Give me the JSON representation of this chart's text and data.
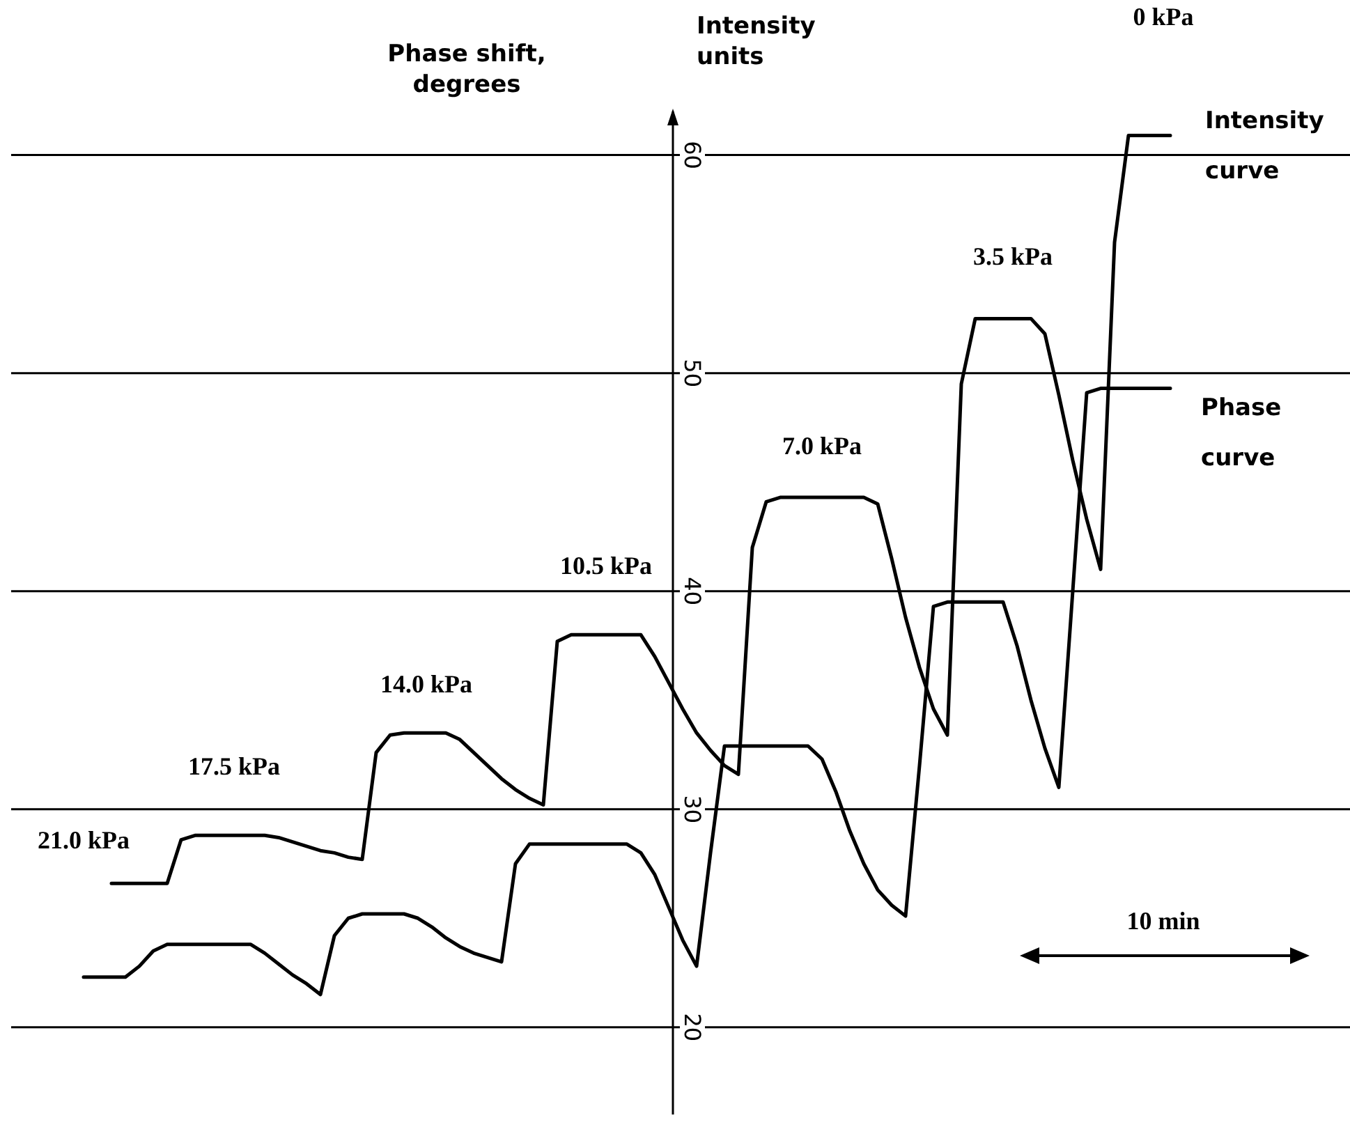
{
  "chart_data": {
    "type": "line",
    "ylabel": "Intensity units",
    "categories": [
      null,
      null,
      null,
      null,
      null,
      null,
      null,
      null,
      null,
      null,
      null,
      null,
      null,
      null,
      null,
      null,
      null,
      null,
      null,
      null,
      null,
      null,
      null,
      null,
      null,
      null,
      null,
      null,
      null,
      null,
      null,
      null,
      null,
      null,
      null,
      null,
      null,
      null,
      null,
      null,
      null,
      null,
      null,
      null,
      null,
      null,
      null,
      null,
      null,
      null,
      null,
      null,
      null,
      null,
      null,
      null,
      null,
      null,
      null,
      null,
      null,
      null,
      null,
      null,
      null,
      null,
      null,
      null,
      null,
      null,
      null,
      null,
      null,
      null,
      null,
      null,
      null,
      null,
      null,
      null
    ],
    "series": [
      {
        "name": "Intensity curve",
        "color": "#000000",
        "values": [
          null,
          null,
          null,
          26.6,
          26.6,
          26.6,
          26.6,
          26.6,
          28.6,
          28.8,
          28.8,
          28.8,
          28.8,
          28.8,
          28.8,
          28.7,
          28.5,
          28.3,
          28.1,
          28.0,
          27.8,
          27.7,
          32.6,
          33.4,
          33.5,
          33.5,
          33.5,
          33.5,
          33.2,
          32.6,
          32.0,
          31.4,
          30.9,
          30.5,
          30.2,
          37.7,
          38.0,
          38.0,
          38.0,
          38.0,
          38.0,
          38.0,
          37.0,
          35.8,
          34.6,
          33.5,
          32.7,
          32.0,
          31.6,
          42.0,
          44.1,
          44.3,
          44.3,
          44.3,
          44.3,
          44.3,
          44.3,
          44.3,
          44.0,
          41.5,
          38.8,
          36.5,
          34.6,
          33.4,
          49.5,
          52.5,
          52.5,
          52.5,
          52.5,
          52.5,
          51.8,
          49.0,
          46.0,
          43.3,
          41.0,
          56.0,
          60.9,
          60.9,
          60.9,
          60.9
        ]
      },
      {
        "name": "Phase curve",
        "color": "#000000",
        "values": [
          null,
          22.3,
          22.3,
          22.3,
          22.3,
          22.8,
          23.5,
          23.8,
          23.8,
          23.8,
          23.8,
          23.8,
          23.8,
          23.8,
          23.4,
          22.9,
          22.4,
          22.0,
          21.5,
          24.2,
          25.0,
          25.2,
          25.2,
          25.2,
          25.2,
          25.0,
          24.6,
          24.1,
          23.7,
          23.4,
          23.2,
          23.0,
          27.5,
          28.4,
          28.4,
          28.4,
          28.4,
          28.4,
          28.4,
          28.4,
          28.4,
          28.0,
          27.0,
          25.5,
          24.0,
          22.8,
          28.0,
          32.9,
          32.9,
          32.9,
          32.9,
          32.9,
          32.9,
          32.9,
          32.3,
          30.8,
          29.0,
          27.5,
          26.3,
          25.6,
          25.1,
          32.0,
          39.3,
          39.5,
          39.5,
          39.5,
          39.5,
          39.5,
          37.5,
          35.0,
          32.8,
          31.0,
          40.0,
          49.1,
          49.3,
          49.3,
          49.3,
          49.3,
          49.3,
          49.3
        ]
      }
    ],
    "ylim": [
      16,
      62
    ],
    "yticks": [
      20,
      30,
      40,
      50,
      60
    ],
    "grid": "y",
    "annotations": [
      "0 kPa",
      "3.5 kPa",
      "7.0 kPa",
      "10.5 kPa",
      "14.0 kPa",
      "17.5 kPa",
      "21.0 kPa",
      "Phase shift, degrees",
      "10 min"
    ]
  }
}
